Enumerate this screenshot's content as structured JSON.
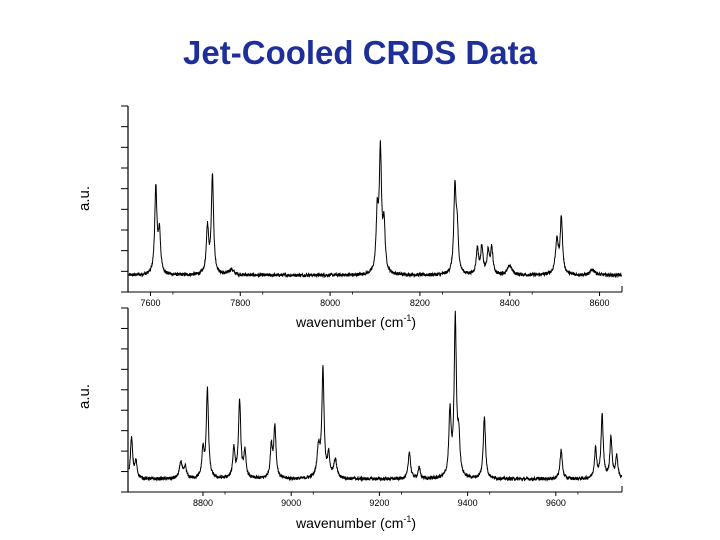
{
  "title": "Jet-Cooled CRDS Data",
  "chart_data": [
    {
      "type": "line",
      "ylabel": "a.u.",
      "xlabel_prefix": "wavenumber (cm",
      "xlabel_sup": "-1",
      "xlabel_suffix": ")",
      "xlim": [
        7550,
        8650
      ],
      "ylim": [
        0,
        1
      ],
      "xticks": [
        7600,
        7800,
        8000,
        8200,
        8400,
        8600
      ],
      "baseline": 0.09,
      "series": [
        {
          "color": "#000000",
          "peaks": [
            {
              "x": 7612,
              "h": 0.46,
              "w": 3
            },
            {
              "x": 7620,
              "h": 0.22,
              "w": 3
            },
            {
              "x": 7727,
              "h": 0.25,
              "w": 3
            },
            {
              "x": 7738,
              "h": 0.53,
              "w": 3
            },
            {
              "x": 7780,
              "h": 0.03,
              "w": 6
            },
            {
              "x": 8105,
              "h": 0.3,
              "w": 3
            },
            {
              "x": 8112,
              "h": 0.64,
              "w": 3
            },
            {
              "x": 8120,
              "h": 0.25,
              "w": 3
            },
            {
              "x": 8278,
              "h": 0.45,
              "w": 3
            },
            {
              "x": 8283,
              "h": 0.22,
              "w": 3
            },
            {
              "x": 8328,
              "h": 0.14,
              "w": 3
            },
            {
              "x": 8338,
              "h": 0.15,
              "w": 3
            },
            {
              "x": 8352,
              "h": 0.12,
              "w": 3
            },
            {
              "x": 8360,
              "h": 0.14,
              "w": 3
            },
            {
              "x": 8400,
              "h": 0.05,
              "w": 6
            },
            {
              "x": 8505,
              "h": 0.18,
              "w": 4
            },
            {
              "x": 8515,
              "h": 0.3,
              "w": 3
            },
            {
              "x": 8585,
              "h": 0.03,
              "w": 6
            }
          ]
        }
      ]
    },
    {
      "type": "line",
      "ylabel": "a.u.",
      "xlabel_prefix": "wavenumber (cm",
      "xlabel_sup": "-1",
      "xlabel_suffix": ")",
      "xlim": [
        8630,
        9750
      ],
      "ylim": [
        0,
        1
      ],
      "xticks": [
        8800,
        9000,
        9200,
        9400,
        9600
      ],
      "baseline": 0.07,
      "series": [
        {
          "color": "#000000",
          "peaks": [
            {
              "x": 8638,
              "h": 0.22,
              "w": 3
            },
            {
              "x": 8648,
              "h": 0.09,
              "w": 3
            },
            {
              "x": 8750,
              "h": 0.09,
              "w": 4
            },
            {
              "x": 8760,
              "h": 0.06,
              "w": 3
            },
            {
              "x": 8800,
              "h": 0.15,
              "w": 3
            },
            {
              "x": 8810,
              "h": 0.48,
              "w": 3
            },
            {
              "x": 8870,
              "h": 0.16,
              "w": 3
            },
            {
              "x": 8883,
              "h": 0.42,
              "w": 3
            },
            {
              "x": 8895,
              "h": 0.14,
              "w": 3
            },
            {
              "x": 8955,
              "h": 0.17,
              "w": 3
            },
            {
              "x": 8963,
              "h": 0.28,
              "w": 3
            },
            {
              "x": 9062,
              "h": 0.16,
              "w": 4
            },
            {
              "x": 9072,
              "h": 0.58,
              "w": 3
            },
            {
              "x": 9085,
              "h": 0.12,
              "w": 3
            },
            {
              "x": 9100,
              "h": 0.1,
              "w": 4
            },
            {
              "x": 9268,
              "h": 0.15,
              "w": 3
            },
            {
              "x": 9290,
              "h": 0.06,
              "w": 3
            },
            {
              "x": 9360,
              "h": 0.35,
              "w": 3
            },
            {
              "x": 9372,
              "h": 0.86,
              "w": 3
            },
            {
              "x": 9380,
              "h": 0.2,
              "w": 3
            },
            {
              "x": 9438,
              "h": 0.34,
              "w": 3
            },
            {
              "x": 9612,
              "h": 0.16,
              "w": 3
            },
            {
              "x": 9690,
              "h": 0.16,
              "w": 3
            },
            {
              "x": 9705,
              "h": 0.34,
              "w": 3
            },
            {
              "x": 9725,
              "h": 0.22,
              "w": 3
            },
            {
              "x": 9738,
              "h": 0.12,
              "w": 3
            }
          ]
        }
      ]
    }
  ]
}
